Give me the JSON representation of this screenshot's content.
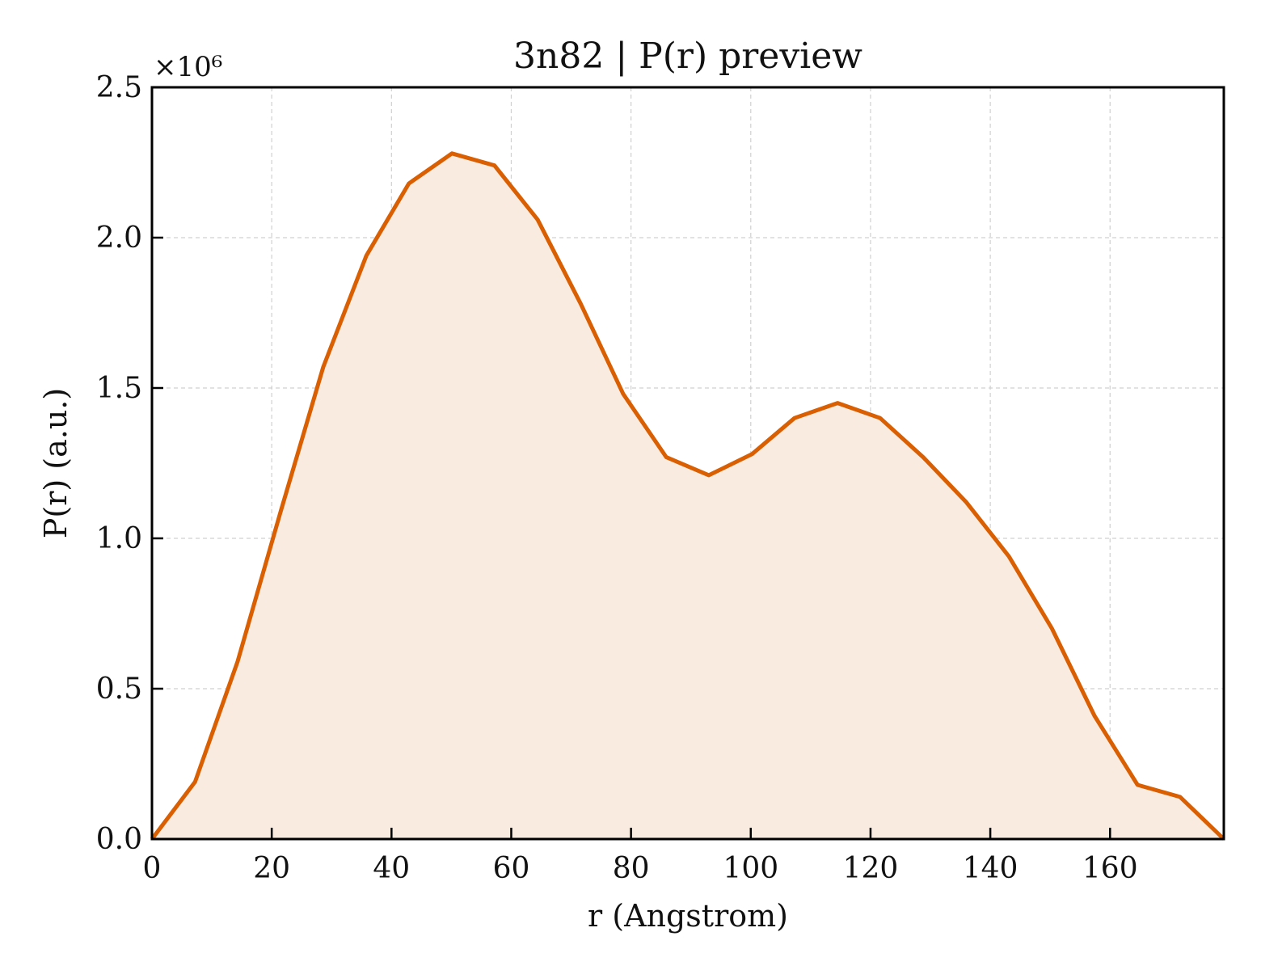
{
  "chart_data": {
    "type": "area",
    "title": "3n82 | P(r) preview",
    "xlabel": "r (Angstrom)",
    "ylabel": "P(r) (a.u.)",
    "y_multiplier_label": "×10⁶",
    "xlim": [
      0,
      179
    ],
    "ylim": [
      0,
      2.5
    ],
    "x_ticks": [
      0,
      20,
      40,
      60,
      80,
      100,
      120,
      140,
      160
    ],
    "y_ticks": [
      0.0,
      0.5,
      1.0,
      1.5,
      2.0,
      2.5
    ],
    "x_tick_labels": [
      "0",
      "20",
      "40",
      "60",
      "80",
      "100",
      "120",
      "140",
      "160"
    ],
    "y_tick_labels": [
      "0.0",
      "0.5",
      "1.0",
      "1.5",
      "2.0",
      "2.5"
    ],
    "grid": true,
    "color": "#d95f02",
    "fill_color": "#f9ebe0",
    "series": [
      {
        "x": [
          0,
          7.2,
          14.3,
          21.5,
          28.6,
          35.8,
          42.9,
          50.1,
          57.2,
          64.4,
          71.6,
          78.7,
          85.9,
          93.0,
          100.2,
          107.3,
          114.5,
          121.6,
          128.8,
          136.0,
          143.1,
          150.3,
          157.4,
          164.6,
          171.7,
          179.0
        ],
        "y": [
          0.0,
          0.19,
          0.59,
          1.09,
          1.57,
          1.94,
          2.18,
          2.28,
          2.24,
          2.06,
          1.78,
          1.48,
          1.27,
          1.21,
          1.28,
          1.4,
          1.45,
          1.4,
          1.27,
          1.12,
          0.94,
          0.7,
          0.41,
          0.18,
          0.14,
          0.0
        ]
      }
    ]
  }
}
